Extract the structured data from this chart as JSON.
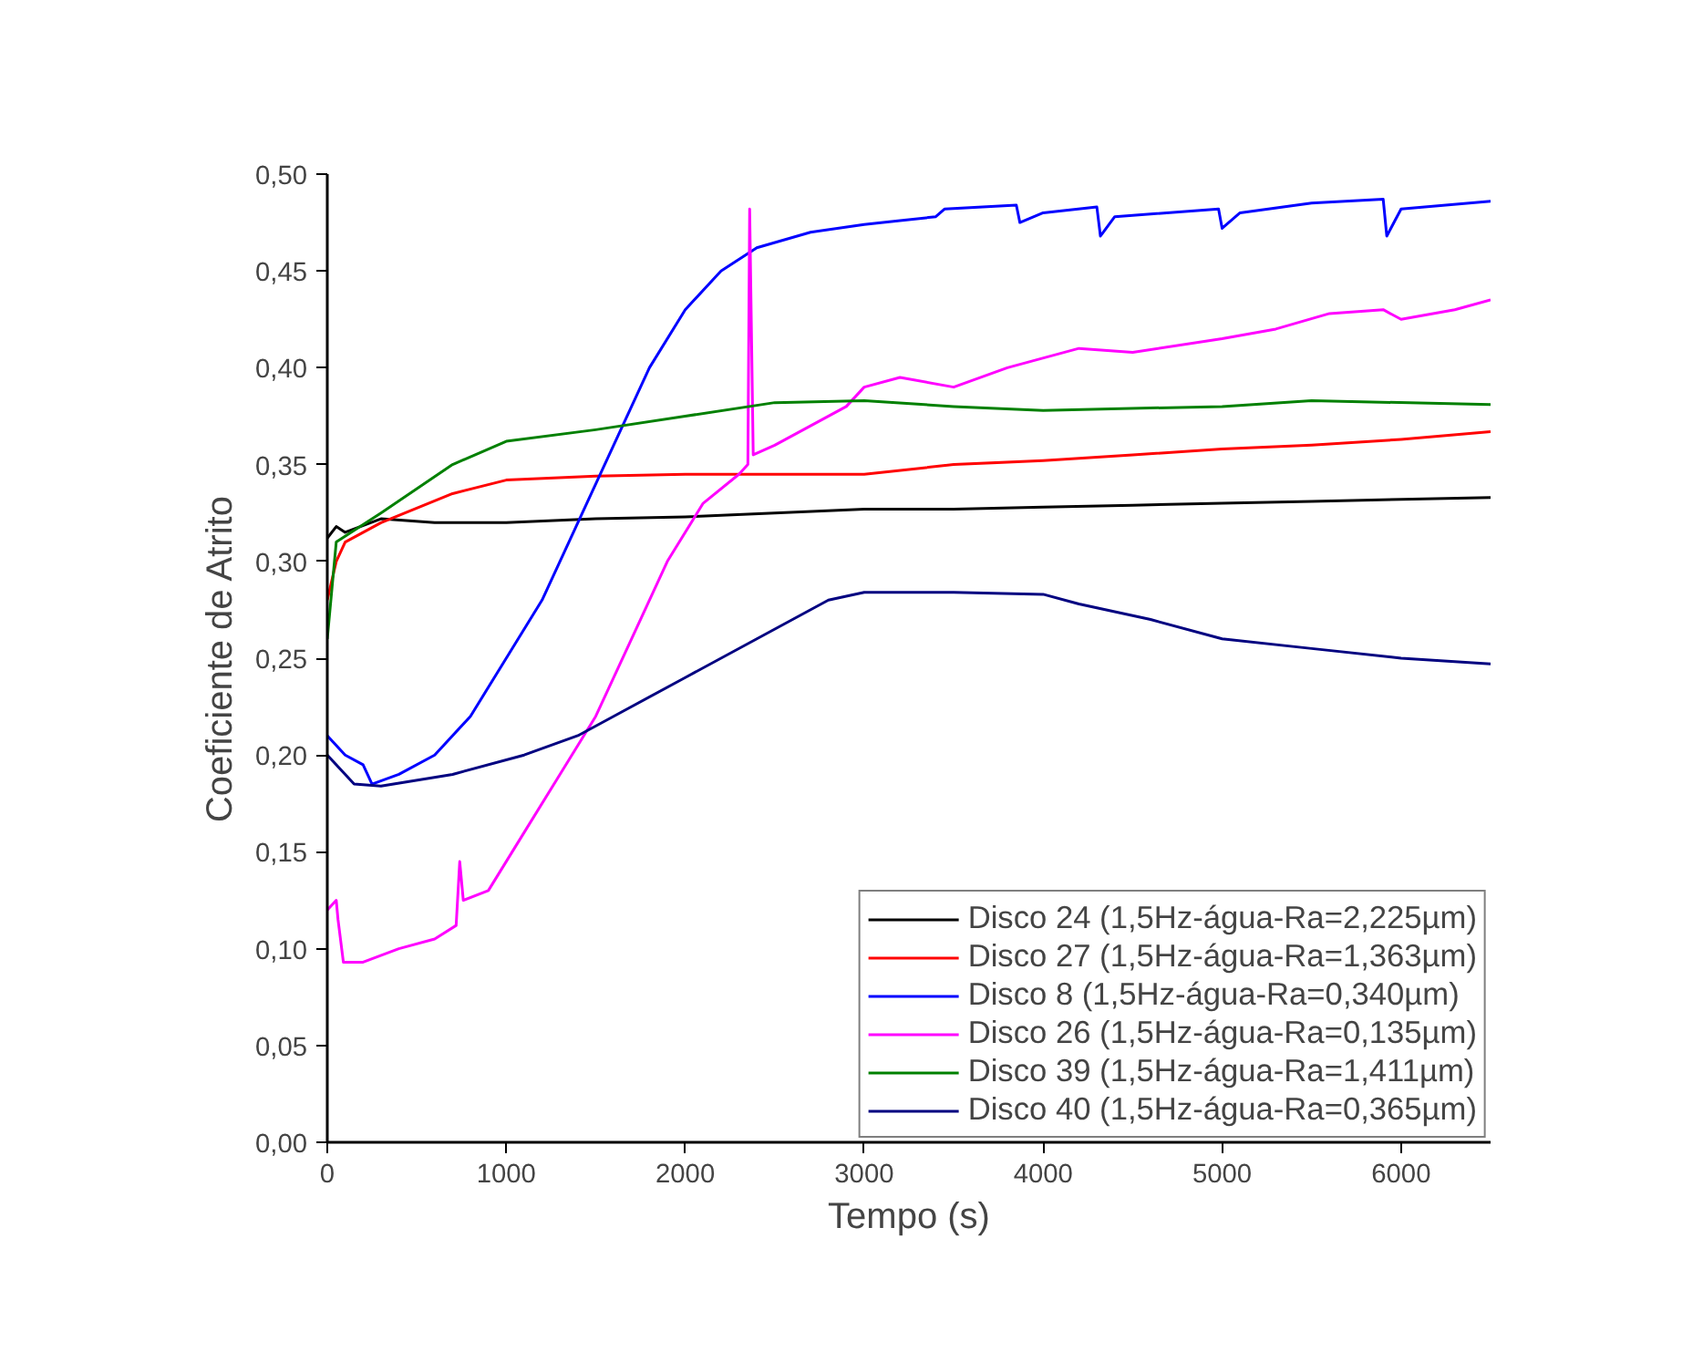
{
  "chart_data": {
    "type": "line",
    "xlabel": "Tempo (s)",
    "ylabel": "Coeficiente de Atrito",
    "xlim": [
      0,
      6500
    ],
    "ylim": [
      0,
      0.5
    ],
    "xticks": [
      0,
      1000,
      2000,
      3000,
      4000,
      5000,
      6000
    ],
    "yticks": [
      {
        "value": 0,
        "label": "0,00"
      },
      {
        "value": 0.05,
        "label": "0,05"
      },
      {
        "value": 0.1,
        "label": "0,10"
      },
      {
        "value": 0.15,
        "label": "0,15"
      },
      {
        "value": 0.2,
        "label": "0,20"
      },
      {
        "value": 0.25,
        "label": "0,25"
      },
      {
        "value": 0.3,
        "label": "0,30"
      },
      {
        "value": 0.35,
        "label": "0,35"
      },
      {
        "value": 0.4,
        "label": "0,40"
      },
      {
        "value": 0.45,
        "label": "0,45"
      },
      {
        "value": 0.5,
        "label": "0,50"
      }
    ],
    "grid": false,
    "legend": "bottom right",
    "marker": "none",
    "line_style": "solid",
    "series": [
      {
        "name": "Disco 24 (1,5Hz-água-Ra=2,225µm)",
        "color": "#000000",
        "x": [
          0,
          50,
          100,
          300,
          600,
          1000,
          1500,
          2000,
          2500,
          3000,
          3500,
          4000,
          4500,
          5000,
          5500,
          6000,
          6500
        ],
        "values": [
          0.312,
          0.318,
          0.315,
          0.322,
          0.32,
          0.32,
          0.322,
          0.323,
          0.325,
          0.327,
          0.327,
          0.328,
          0.329,
          0.33,
          0.331,
          0.332,
          0.333
        ]
      },
      {
        "name": "Disco 27 (1,5Hz-água-Ra=1,363µm)",
        "color": "#ff0000",
        "x": [
          0,
          50,
          100,
          300,
          700,
          1000,
          1500,
          2000,
          2500,
          3000,
          3500,
          4000,
          4500,
          5000,
          5500,
          6000,
          6500
        ],
        "values": [
          0.28,
          0.3,
          0.31,
          0.32,
          0.335,
          0.342,
          0.344,
          0.345,
          0.345,
          0.345,
          0.35,
          0.352,
          0.355,
          0.358,
          0.36,
          0.363,
          0.367
        ]
      },
      {
        "name": "Disco 8 (1,5Hz-água-Ra=0,340µm)",
        "color": "#0000ff",
        "x": [
          0,
          100,
          200,
          250,
          400,
          600,
          800,
          1000,
          1200,
          1400,
          1600,
          1800,
          2000,
          2200,
          2400,
          2700,
          3000,
          3200,
          3400,
          3450,
          3850,
          3870,
          4000,
          4300,
          4320,
          4400,
          4980,
          5000,
          5100,
          5500,
          5900,
          5920,
          6000,
          6500
        ],
        "values": [
          0.21,
          0.2,
          0.195,
          0.185,
          0.19,
          0.2,
          0.22,
          0.25,
          0.28,
          0.32,
          0.36,
          0.4,
          0.43,
          0.45,
          0.462,
          0.47,
          0.474,
          0.476,
          0.478,
          0.482,
          0.484,
          0.475,
          0.48,
          0.483,
          0.468,
          0.478,
          0.482,
          0.472,
          0.48,
          0.485,
          0.487,
          0.468,
          0.482,
          0.486
        ]
      },
      {
        "name": "Disco 26 (1,5Hz-água-Ra=0,135µm)",
        "color": "#ff00ff",
        "x": [
          0,
          50,
          60,
          90,
          200,
          400,
          600,
          720,
          740,
          760,
          900,
          1100,
          1300,
          1500,
          1700,
          1900,
          2100,
          2300,
          2350,
          2360,
          2380,
          2500,
          2700,
          2900,
          3000,
          3200,
          3500,
          3800,
          4200,
          4500,
          5000,
          5300,
          5600,
          5900,
          6000,
          6300,
          6500
        ],
        "values": [
          0.12,
          0.125,
          0.115,
          0.093,
          0.093,
          0.1,
          0.105,
          0.112,
          0.145,
          0.125,
          0.13,
          0.16,
          0.19,
          0.22,
          0.26,
          0.3,
          0.33,
          0.345,
          0.35,
          0.482,
          0.355,
          0.36,
          0.37,
          0.38,
          0.39,
          0.395,
          0.39,
          0.4,
          0.41,
          0.408,
          0.415,
          0.42,
          0.428,
          0.43,
          0.425,
          0.43,
          0.435
        ]
      },
      {
        "name": "Disco 39 (1,5Hz-água-Ra=1,411µm)",
        "color": "#008000",
        "x": [
          0,
          50,
          300,
          700,
          1000,
          1500,
          2000,
          2500,
          3000,
          3500,
          4000,
          5000,
          5500,
          6500
        ],
        "values": [
          0.26,
          0.31,
          0.325,
          0.35,
          0.362,
          0.368,
          0.375,
          0.382,
          0.383,
          0.38,
          0.378,
          0.38,
          0.383,
          0.381
        ]
      },
      {
        "name": "Disco 40 (1,5Hz-água-Ra=0,365µm)",
        "color": "#000080",
        "x": [
          0,
          150,
          300,
          700,
          1100,
          1400,
          1600,
          2000,
          2400,
          2800,
          3000,
          3500,
          4000,
          4200,
          4600,
          5000,
          5500,
          6000,
          6500
        ],
        "values": [
          0.2,
          0.185,
          0.184,
          0.19,
          0.2,
          0.21,
          0.22,
          0.24,
          0.26,
          0.28,
          0.284,
          0.284,
          0.283,
          0.278,
          0.27,
          0.26,
          0.255,
          0.25,
          0.247
        ]
      }
    ]
  }
}
